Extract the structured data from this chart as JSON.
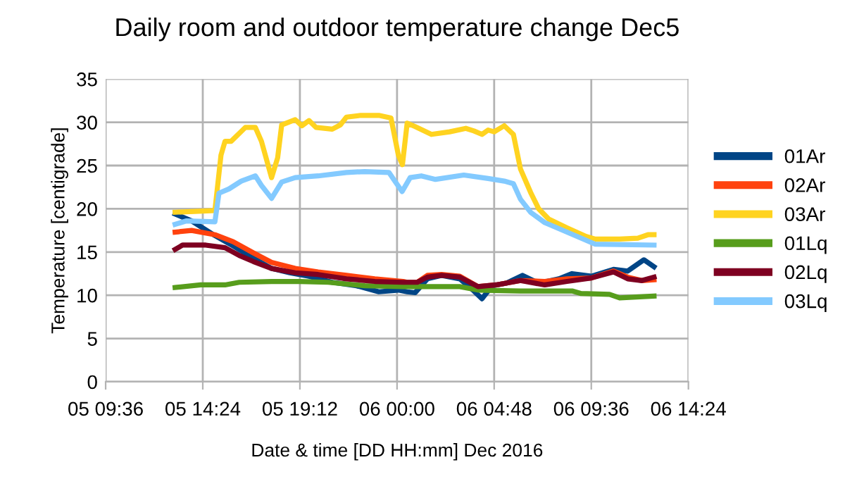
{
  "chart_data": {
    "type": "line",
    "title": "Daily room and outdoor temperature change Dec5",
    "xlabel": "Date & time [DD HH:mm] Dec 2016",
    "ylabel": "Temperature [centigrade]",
    "xlim": [
      "2016-12-05T09:36",
      "2016-12-06T14:24"
    ],
    "xticks": [
      {
        "value": "2016-12-05T09:36",
        "label": "05 09:36"
      },
      {
        "value": "2016-12-05T14:24",
        "label": "05 14:24"
      },
      {
        "value": "2016-12-05T19:12",
        "label": "05 19:12"
      },
      {
        "value": "2016-12-06T00:00",
        "label": "06 00:00"
      },
      {
        "value": "2016-12-06T04:48",
        "label": "06 04:48"
      },
      {
        "value": "2016-12-06T09:36",
        "label": "06 09:36"
      },
      {
        "value": "2016-12-06T14:24",
        "label": "06 14:24"
      }
    ],
    "ylim": [
      0,
      35
    ],
    "yticks": [
      0,
      5,
      10,
      15,
      20,
      25,
      30,
      35
    ],
    "grid": true,
    "legend": "right",
    "marker": "none",
    "line_style": "solid",
    "series": [
      {
        "name": "01Ar",
        "color": "#004586",
        "x": [
          "2016-12-05T13:02",
          "2016-12-05T13:51",
          "2016-12-05T15:00",
          "2016-12-05T15:54",
          "2016-12-05T16:54",
          "2016-12-05T17:48",
          "2016-12-05T18:42",
          "2016-12-05T19:39",
          "2016-12-05T20:48",
          "2016-12-05T22:00",
          "2016-12-05T23:06",
          "2016-12-06T00:04",
          "2016-12-06T00:30",
          "2016-12-06T00:54",
          "2016-12-06T01:30",
          "2016-12-06T02:12",
          "2016-12-06T03:06",
          "2016-12-06T03:48",
          "2016-12-06T04:12",
          "2016-12-06T04:42",
          "2016-12-06T05:24",
          "2016-12-06T06:12",
          "2016-12-06T07:00",
          "2016-12-06T08:00",
          "2016-12-06T08:39",
          "2016-12-06T09:36",
          "2016-12-06T10:42",
          "2016-12-06T11:24",
          "2016-12-06T12:12",
          "2016-12-06T12:42"
        ],
        "values": [
          19.4,
          18.6,
          16.9,
          15.7,
          14.3,
          13.1,
          12.6,
          12.2,
          11.5,
          11.1,
          10.4,
          10.6,
          10.4,
          10.3,
          11.9,
          12.3,
          11.9,
          10.5,
          9.6,
          11.1,
          11.4,
          12.3,
          11.4,
          11.9,
          12.5,
          12.2,
          13.0,
          12.8,
          14.1,
          13.3
        ]
      },
      {
        "name": "02Ar",
        "color": "#ff420e",
        "x": [
          "2016-12-05T13:02",
          "2016-12-05T13:51",
          "2016-12-05T15:00",
          "2016-12-05T15:54",
          "2016-12-05T16:54",
          "2016-12-05T17:48",
          "2016-12-05T18:58",
          "2016-12-05T20:06",
          "2016-12-05T21:30",
          "2016-12-05T22:54",
          "2016-12-06T00:18",
          "2016-12-06T00:30",
          "2016-12-06T01:00",
          "2016-12-06T01:30",
          "2016-12-06T02:12",
          "2016-12-06T03:06",
          "2016-12-06T04:00",
          "2016-12-06T04:54",
          "2016-12-06T06:06",
          "2016-12-06T07:18",
          "2016-12-06T08:24",
          "2016-12-06T09:36",
          "2016-12-06T10:42",
          "2016-12-06T11:24",
          "2016-12-06T12:06",
          "2016-12-06T12:42"
        ],
        "values": [
          17.3,
          17.5,
          17.0,
          16.2,
          14.9,
          13.8,
          13.1,
          12.7,
          12.3,
          11.9,
          11.6,
          11.5,
          11.5,
          12.3,
          12.4,
          12.2,
          11.0,
          11.2,
          11.7,
          11.6,
          11.9,
          12.0,
          12.8,
          12.1,
          11.7,
          11.8
        ]
      },
      {
        "name": "03Ar",
        "color": "#ffd320",
        "x": [
          "2016-12-05T13:02",
          "2016-12-05T15:00",
          "2016-12-05T15:18",
          "2016-12-05T15:30",
          "2016-12-05T15:48",
          "2016-12-05T16:30",
          "2016-12-05T17:00",
          "2016-12-05T17:18",
          "2016-12-05T17:48",
          "2016-12-05T18:06",
          "2016-12-05T18:18",
          "2016-12-05T18:58",
          "2016-12-05T19:18",
          "2016-12-05T19:39",
          "2016-12-05T20:00",
          "2016-12-05T20:48",
          "2016-12-05T21:12",
          "2016-12-05T21:30",
          "2016-12-05T22:12",
          "2016-12-05T23:06",
          "2016-12-05T23:42",
          "2016-12-06T00:04",
          "2016-12-06T00:16",
          "2016-12-06T00:30",
          "2016-12-06T00:54",
          "2016-12-06T01:42",
          "2016-12-06T02:36",
          "2016-12-06T03:24",
          "2016-12-06T03:48",
          "2016-12-06T04:12",
          "2016-12-06T04:30",
          "2016-12-06T04:48",
          "2016-12-06T05:18",
          "2016-12-06T05:45",
          "2016-12-06T06:06",
          "2016-12-06T06:36",
          "2016-12-06T07:00",
          "2016-12-06T07:30",
          "2016-12-06T08:24",
          "2016-12-06T09:21",
          "2016-12-06T09:48",
          "2016-12-06T11:00",
          "2016-12-06T11:54",
          "2016-12-06T12:24",
          "2016-12-06T12:42"
        ],
        "values": [
          19.6,
          19.8,
          26.2,
          27.8,
          27.8,
          29.4,
          29.4,
          27.8,
          23.6,
          25.9,
          29.7,
          30.3,
          29.6,
          30.2,
          29.4,
          29.2,
          29.7,
          30.6,
          30.8,
          30.8,
          30.5,
          26.2,
          25.1,
          29.9,
          29.5,
          28.6,
          28.9,
          29.3,
          29.0,
          28.6,
          29.1,
          28.9,
          29.6,
          28.6,
          24.6,
          21.9,
          20.0,
          18.8,
          17.8,
          16.8,
          16.5,
          16.5,
          16.6,
          17.0,
          17.0
        ]
      },
      {
        "name": "01Lq",
        "color": "#579d1c",
        "x": [
          "2016-12-05T13:02",
          "2016-12-05T14:18",
          "2016-12-05T15:30",
          "2016-12-05T16:12",
          "2016-12-05T17:48",
          "2016-12-05T19:12",
          "2016-12-05T20:36",
          "2016-12-05T22:24",
          "2016-12-06T00:18",
          "2016-12-06T01:30",
          "2016-12-06T03:06",
          "2016-12-06T04:00",
          "2016-12-06T06:06",
          "2016-12-06T08:39",
          "2016-12-06T09:06",
          "2016-12-06T10:30",
          "2016-12-06T11:00",
          "2016-12-06T12:42"
        ],
        "values": [
          10.9,
          11.2,
          11.2,
          11.5,
          11.6,
          11.6,
          11.5,
          11.1,
          11.0,
          11.0,
          11.0,
          10.6,
          10.5,
          10.5,
          10.2,
          10.1,
          9.7,
          9.9
        ]
      },
      {
        "name": "02Lq",
        "color": "#7e0021",
        "x": [
          "2016-12-05T13:02",
          "2016-12-05T13:24",
          "2016-12-05T14:33",
          "2016-12-05T15:30",
          "2016-12-05T16:12",
          "2016-12-05T16:54",
          "2016-12-05T17:48",
          "2016-12-05T18:58",
          "2016-12-05T20:06",
          "2016-12-05T21:30",
          "2016-12-05T22:54",
          "2016-12-06T00:18",
          "2016-12-06T01:00",
          "2016-12-06T01:30",
          "2016-12-06T02:12",
          "2016-12-06T03:06",
          "2016-12-06T04:00",
          "2016-12-06T04:54",
          "2016-12-06T06:06",
          "2016-12-06T07:18",
          "2016-12-06T08:24",
          "2016-12-06T09:36",
          "2016-12-06T10:42",
          "2016-12-06T11:24",
          "2016-12-06T12:06",
          "2016-12-06T12:42"
        ],
        "values": [
          15.3,
          15.8,
          15.8,
          15.5,
          14.6,
          13.9,
          13.1,
          12.6,
          12.4,
          11.9,
          11.6,
          11.5,
          11.5,
          12.1,
          12.3,
          12.1,
          11.0,
          11.2,
          11.7,
          11.2,
          11.6,
          12.0,
          12.7,
          11.9,
          11.7,
          12.1
        ]
      },
      {
        "name": "03Lq",
        "color": "#83caff",
        "x": [
          "2016-12-05T13:02",
          "2016-12-05T13:36",
          "2016-12-05T15:00",
          "2016-12-05T15:12",
          "2016-12-05T15:42",
          "2016-12-05T16:18",
          "2016-12-05T17:00",
          "2016-12-05T17:18",
          "2016-12-05T17:48",
          "2016-12-05T18:18",
          "2016-12-05T18:58",
          "2016-12-05T20:06",
          "2016-12-05T21:30",
          "2016-12-05T22:24",
          "2016-12-05T23:36",
          "2016-12-05T23:57",
          "2016-12-06T00:15",
          "2016-12-06T00:39",
          "2016-12-06T01:12",
          "2016-12-06T01:54",
          "2016-12-06T03:18",
          "2016-12-06T04:30",
          "2016-12-06T05:18",
          "2016-12-06T05:45",
          "2016-12-06T06:06",
          "2016-12-06T06:36",
          "2016-12-06T07:18",
          "2016-12-06T08:24",
          "2016-12-06T09:48",
          "2016-12-06T12:42"
        ],
        "values": [
          18.2,
          18.6,
          18.5,
          21.8,
          22.3,
          23.2,
          23.8,
          22.7,
          21.2,
          23.1,
          23.6,
          23.8,
          24.2,
          24.3,
          24.2,
          23.0,
          22.0,
          23.6,
          23.8,
          23.4,
          23.9,
          23.5,
          23.2,
          22.9,
          21.1,
          19.6,
          18.4,
          17.3,
          15.9,
          15.8
        ]
      }
    ]
  }
}
